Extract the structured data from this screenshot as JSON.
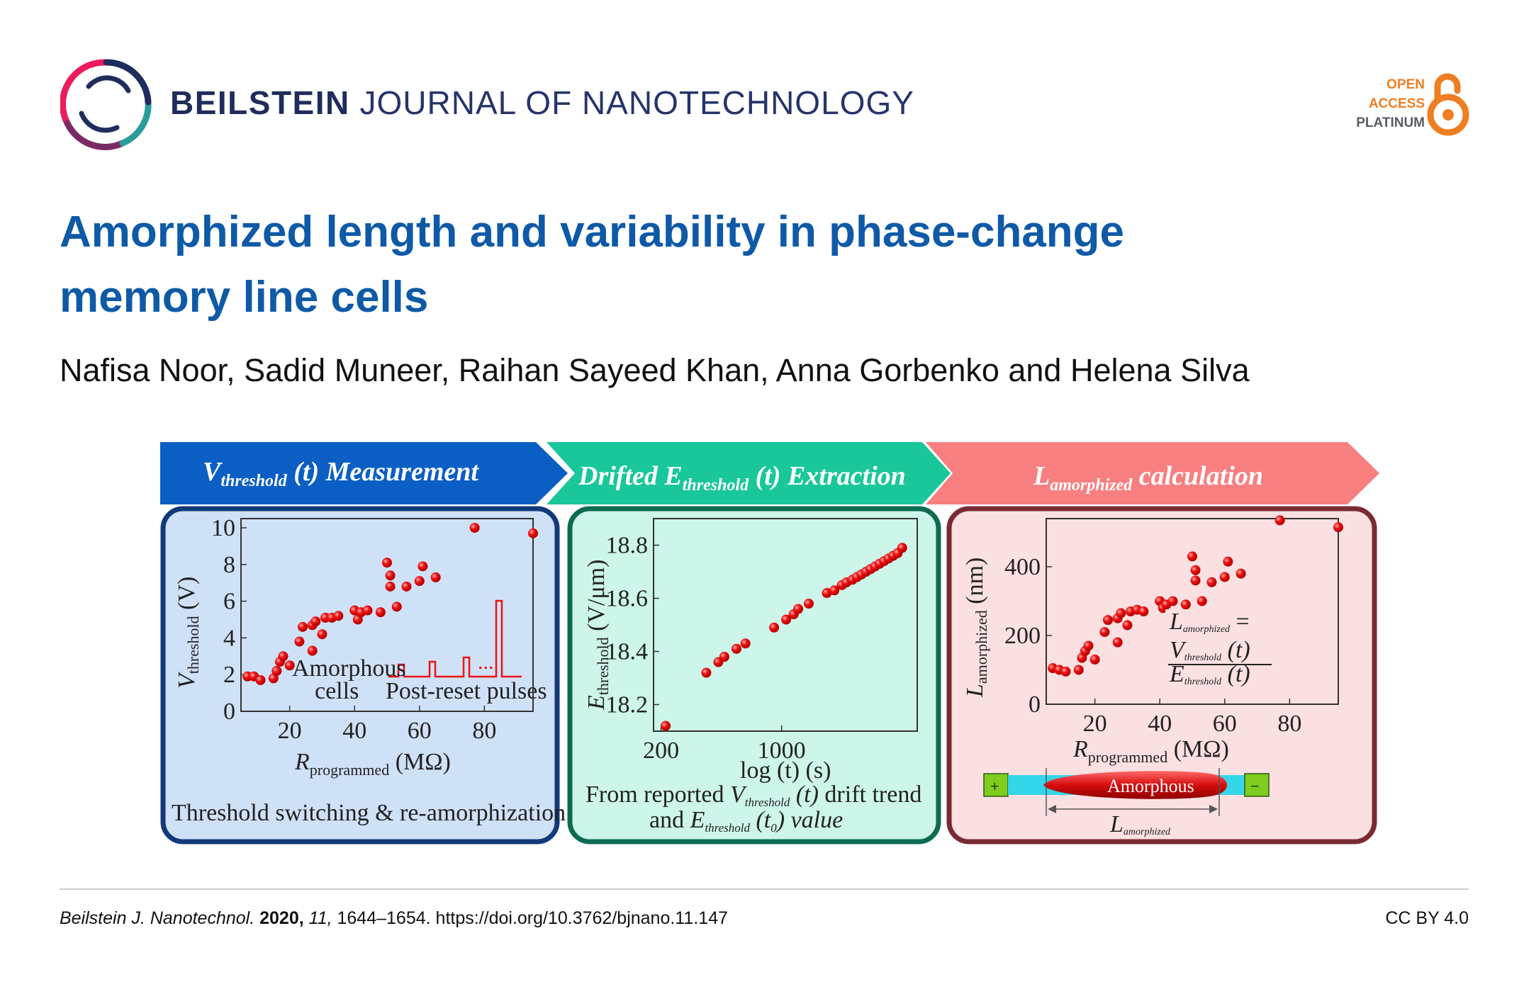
{
  "header": {
    "journal_bold": "BEILSTEIN",
    "journal_rest": " JOURNAL OF NANOTECHNOLOGY",
    "oa_line1": "OPEN",
    "oa_line2": "ACCESS",
    "oa_line3": "PLATINUM"
  },
  "article": {
    "title_line1": "Amorphized length and variability in phase-change",
    "title_line2": "memory line cells",
    "authors": "Nafisa Noor, Sadid Muneer, Raihan Sayeed Khan, Anna Gorbenko and Helena Silva"
  },
  "figure": {
    "banner1": {
      "main": "V",
      "sub": "threshold",
      "rest": " (t) Measurement"
    },
    "banner2": {
      "main": "Drifted E",
      "sub": "threshold",
      "rest": " (t) Extraction"
    },
    "banner3": {
      "main": "L",
      "sub": "amorphized",
      "rest": " calculation"
    },
    "panel1": {
      "ylabel_main": "V",
      "ylabel_sub": "threshold",
      "ylabel_unit": " (V)",
      "xlabel_main": "R",
      "xlabel_sub": "programmed",
      "xlabel_unit": " (MΩ)",
      "inset_label1": "Amorphous",
      "inset_label2": "cells",
      "inset_label3": "Post-reset pulses",
      "caption": "Threshold switching & re-amorphization"
    },
    "panel2": {
      "ylabel_main": "E",
      "ylabel_sub": "threshold",
      "ylabel_unit": " (V/μm)",
      "xlabel": "log (t) (s)",
      "caption_line1_pre": "From reported ",
      "caption_line1_v": "V",
      "caption_line1_sub": "threshold",
      "caption_line1_t": " (t)",
      "caption_line1_post": " drift trend",
      "caption_line2_pre": "and ",
      "caption_line2_e": "E",
      "caption_line2_sub": "threshold",
      "caption_line2_t": " (t",
      "caption_line2_t0": "0",
      "caption_line2_post": ") value"
    },
    "panel3": {
      "ylabel_main": "L",
      "ylabel_sub": "amorphized",
      "ylabel_unit": " (nm)",
      "xlabel_main": "R",
      "xlabel_sub": "programmed",
      "xlabel_unit": " (MΩ)",
      "eq_lhs": "L",
      "eq_lhs_sub": "amorphized",
      "eq_equals": " =",
      "eq_num": "V",
      "eq_num_sub": "threshold",
      "eq_num_t": " (t)",
      "eq_den": "E",
      "eq_den_sub": "threshold",
      "eq_den_t": " (t)",
      "plus": "+",
      "minus": "−",
      "amorphous": "Amorphous",
      "length_main": "L",
      "length_sub": "amorphized"
    },
    "colors": {
      "banner1": "#0b5fc4",
      "banner2": "#19c79a",
      "banner3": "#f87f80",
      "panel1_bg": "#cfe1f7",
      "panel2_bg": "#cdf5ea",
      "panel3_bg": "#fbe0e2",
      "marker": "#ee1111"
    }
  },
  "chart_data": [
    {
      "type": "scatter",
      "title": "Vthreshold (t) Measurement",
      "xlabel": "Rprogrammed (MΩ)",
      "ylabel": "Vthreshold (V)",
      "xlim": [
        5,
        95
      ],
      "ylim": [
        0,
        10.5
      ],
      "xticks": [
        20,
        40,
        60,
        80
      ],
      "yticks": [
        0,
        2,
        4,
        6,
        8,
        10
      ],
      "x": [
        7,
        9,
        11,
        15,
        16,
        17,
        18,
        20,
        23,
        24,
        27,
        27,
        28,
        30,
        31,
        33,
        35,
        40,
        41,
        42,
        44,
        48,
        50,
        51,
        51,
        53,
        56,
        60,
        61,
        65,
        77,
        95
      ],
      "y": [
        1.9,
        1.9,
        1.7,
        1.8,
        2.2,
        2.7,
        3.0,
        2.5,
        3.8,
        4.6,
        4.7,
        3.3,
        4.9,
        4.2,
        5.1,
        5.1,
        5.2,
        5.5,
        5.0,
        5.4,
        5.5,
        5.4,
        8.1,
        7.4,
        6.8,
        5.7,
        6.8,
        7.1,
        7.9,
        7.3,
        10.0,
        9.7
      ]
    },
    {
      "type": "scatter",
      "title": "Drifted Ethreshold (t) Extraction",
      "xlabel": "log (t) (s)",
      "ylabel": "Ethreshold (V/μm)",
      "xlim": [
        150,
        1900
      ],
      "ylim": [
        18.1,
        18.9
      ],
      "xticks": [
        200,
        1000
      ],
      "yticks": [
        18.2,
        18.4,
        18.6,
        18.8
      ],
      "x": [
        230,
        500,
        580,
        620,
        700,
        760,
        950,
        1030,
        1080,
        1110,
        1180,
        1300,
        1350,
        1400,
        1430,
        1470,
        1500,
        1530,
        1560,
        1590,
        1620,
        1650,
        1680,
        1710,
        1740,
        1770,
        1800
      ],
      "y": [
        18.12,
        18.32,
        18.36,
        18.38,
        18.41,
        18.43,
        18.49,
        18.52,
        18.54,
        18.56,
        18.58,
        18.62,
        18.63,
        18.65,
        18.66,
        18.67,
        18.68,
        18.69,
        18.7,
        18.71,
        18.72,
        18.73,
        18.74,
        18.75,
        18.76,
        18.77,
        18.79
      ]
    },
    {
      "type": "scatter",
      "title": "Lamorphized calculation",
      "xlabel": "Rprogrammed (MΩ)",
      "ylabel": "Lamorphized (nm)",
      "xlim": [
        5,
        95
      ],
      "ylim": [
        0,
        540
      ],
      "xticks": [
        20,
        40,
        60,
        80
      ],
      "yticks": [
        0,
        200,
        400
      ],
      "x": [
        7,
        9,
        11,
        15,
        16,
        17,
        18,
        20,
        23,
        24,
        27,
        27,
        28,
        30,
        31,
        33,
        35,
        40,
        41,
        42,
        44,
        48,
        50,
        51,
        51,
        53,
        56,
        60,
        61,
        65,
        77,
        95
      ],
      "y": [
        105,
        100,
        95,
        100,
        135,
        155,
        170,
        130,
        210,
        245,
        250,
        180,
        265,
        230,
        270,
        275,
        270,
        300,
        280,
        290,
        300,
        290,
        430,
        390,
        360,
        300,
        355,
        370,
        415,
        380,
        535,
        515
      ]
    }
  ],
  "footer": {
    "journal_abbrev": "Beilstein J. Nanotechnol.",
    "year": "2020,",
    "volume": "11,",
    "pages": "1644–1654.",
    "doi": "https://doi.org/10.3762/bjnano.11.147",
    "license": "CC BY 4.0"
  }
}
